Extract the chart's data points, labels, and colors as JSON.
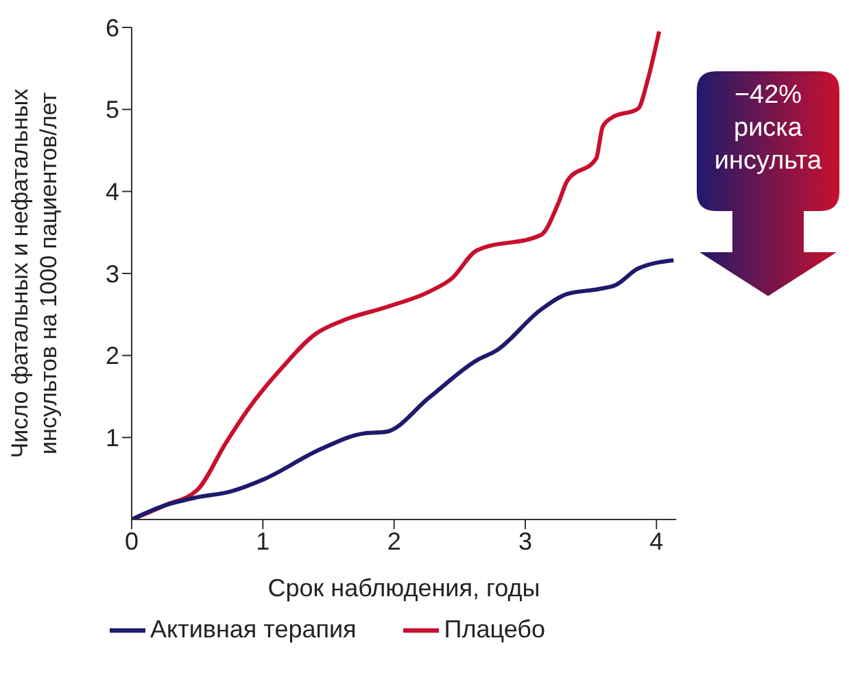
{
  "chart_data": {
    "type": "line",
    "xlabel": "Срок наблюдения, годы",
    "ylabel": "Число фатальных и нефатальных инсультов на 1000 пациентов/лет",
    "xlim": [
      0,
      4.15
    ],
    "ylim": [
      0,
      6
    ],
    "xticks": [
      0,
      1,
      2,
      3,
      4
    ],
    "yticks": [
      1,
      2,
      3,
      4,
      5,
      6
    ],
    "grid": false,
    "legend": "bottom",
    "marker": "none",
    "line_style": "solid",
    "annotations": [
      "−42% риска инсульта"
    ],
    "series": [
      {
        "name": "Плацебо",
        "color": "#c8102e",
        "x": [
          0,
          0.25,
          0.5,
          0.72,
          0.89,
          1.14,
          1.4,
          1.6,
          1.94,
          2.27,
          2.44,
          2.63,
          3.12,
          3.25,
          3.32,
          3.54,
          3.59,
          3.66,
          3.86,
          3.93,
          4.02
        ],
        "values": [
          0,
          0.17,
          0.36,
          0.94,
          1.35,
          1.84,
          2.26,
          2.42,
          2.59,
          2.78,
          2.94,
          3.28,
          3.47,
          3.85,
          4.13,
          4.4,
          4.79,
          4.9,
          5.01,
          5.34,
          5.95
        ]
      },
      {
        "name": "Активная терапия",
        "color": "#1f1a6b",
        "x": [
          0,
          0.25,
          0.5,
          0.75,
          1.02,
          1.43,
          1.77,
          1.94,
          2.27,
          2.64,
          2.78,
          3.12,
          3.32,
          3.56,
          3.69,
          3.86,
          4.13
        ],
        "values": [
          0,
          0.17,
          0.27,
          0.34,
          0.5,
          0.85,
          1.05,
          1.07,
          1.49,
          1.95,
          2.06,
          2.56,
          2.75,
          2.81,
          2.86,
          3.06,
          3.16
        ]
      }
    ]
  }
}
